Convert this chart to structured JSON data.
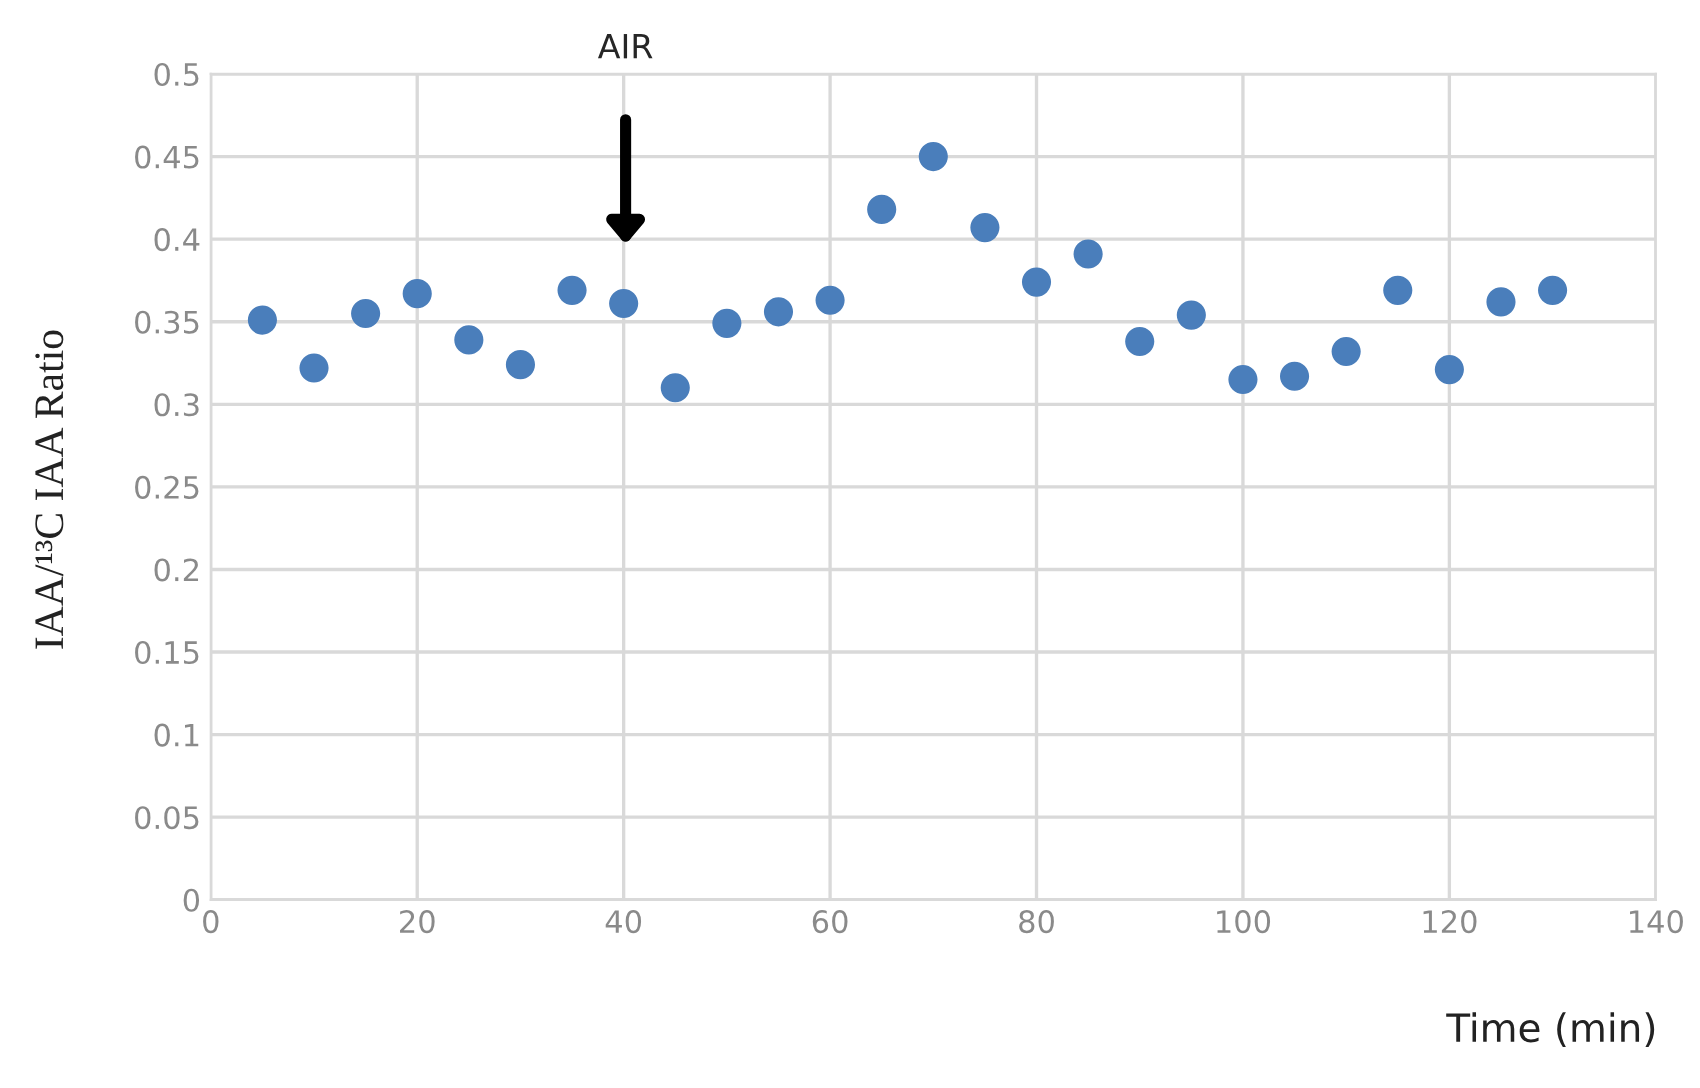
{
  "chart_data": {
    "type": "scatter",
    "xlabel": "Time (min)",
    "ylabel": "IAA/¹³C IAA Ratio",
    "x": [
      5,
      10,
      15,
      20,
      25,
      30,
      35,
      40,
      45,
      50,
      55,
      60,
      65,
      70,
      75,
      80,
      85,
      90,
      95,
      100,
      105,
      110,
      115,
      120,
      125,
      130
    ],
    "series": [
      {
        "color": "#4a7ebb",
        "values": [
          0.351,
          0.322,
          0.355,
          0.367,
          0.339,
          0.324,
          0.369,
          0.361,
          0.31,
          0.349,
          0.356,
          0.363,
          0.418,
          0.45,
          0.407,
          0.374,
          0.391,
          0.338,
          0.354,
          0.315,
          0.317,
          0.332,
          0.369,
          0.321,
          0.362,
          0.369
        ]
      }
    ],
    "xlim": [
      0,
      140
    ],
    "xticks": [
      0,
      20,
      40,
      60,
      80,
      100,
      120,
      140
    ],
    "ylim": [
      0,
      0.5
    ],
    "yticks": [
      0,
      0.05,
      0.1,
      0.15,
      0.2,
      0.25,
      0.3,
      0.35,
      0.4,
      0.45,
      0.5
    ],
    "annotations": [
      "AIR"
    ],
    "grid": true,
    "marker": "circle",
    "legend": false
  }
}
